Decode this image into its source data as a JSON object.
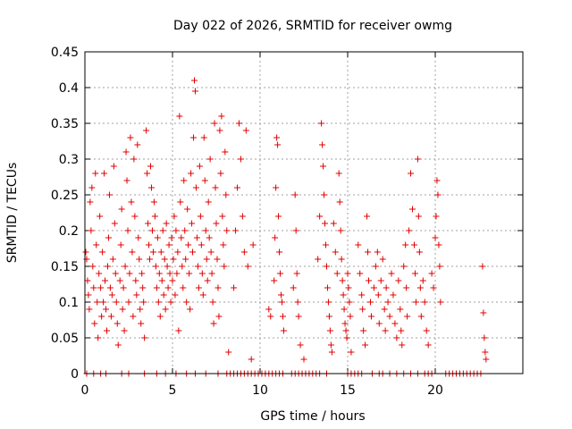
{
  "chart_data": {
    "type": "scatter",
    "title": "Day 022 of 2026, SRMTID for receiver owmg",
    "xlabel": "GPS time / hours",
    "ylabel": "SRMTID / TECUs",
    "xlim": [
      0,
      25
    ],
    "ylim": [
      0,
      0.45
    ],
    "xticks": [
      0,
      5,
      10,
      15,
      20
    ],
    "xtick_labels": [
      "0",
      "5",
      "10",
      "15",
      "20"
    ],
    "yticks": [
      0,
      0.05,
      0.1,
      0.15,
      0.2,
      0.25,
      0.3,
      0.35,
      0.4,
      0.45
    ],
    "ytick_labels": [
      "0",
      "0.05",
      "0.1",
      "0.15",
      "0.2",
      "0.25",
      "0.3",
      "0.35",
      "0.4",
      "0.45"
    ],
    "grid": true,
    "marker": "+",
    "marker_color": "#e00000",
    "series": [
      {
        "name": "SRMTID",
        "points": [
          [
            0.05,
            0.17
          ],
          [
            0.1,
            0.16
          ],
          [
            0.15,
            0.13
          ],
          [
            0.2,
            0.11
          ],
          [
            0.25,
            0.09
          ],
          [
            0.3,
            0.24
          ],
          [
            0.35,
            0.2
          ],
          [
            0.4,
            0.26
          ],
          [
            0.45,
            0.15
          ],
          [
            0.5,
            0.12
          ],
          [
            0.55,
            0.07
          ],
          [
            0.6,
            0.28
          ],
          [
            0.65,
            0.18
          ],
          [
            0.7,
            0.1
          ],
          [
            0.75,
            0.05
          ],
          [
            0.8,
            0.14
          ],
          [
            0.85,
            0.22
          ],
          [
            0.9,
            0.12
          ],
          [
            0.95,
            0.08
          ],
          [
            1.0,
            0.17
          ],
          [
            1.05,
            0.1
          ],
          [
            1.1,
            0.28
          ],
          [
            1.15,
            0.13
          ],
          [
            1.2,
            0.09
          ],
          [
            1.25,
            0.06
          ],
          [
            1.3,
            0.15
          ],
          [
            1.35,
            0.19
          ],
          [
            1.4,
            0.25
          ],
          [
            1.45,
            0.12
          ],
          [
            1.5,
            0.08
          ],
          [
            1.55,
            0.11
          ],
          [
            1.6,
            0.16
          ],
          [
            1.65,
            0.29
          ],
          [
            1.7,
            0.21
          ],
          [
            1.75,
            0.14
          ],
          [
            1.8,
            0.1
          ],
          [
            1.85,
            0.07
          ],
          [
            1.9,
            0.04
          ],
          [
            2.0,
            0.13
          ],
          [
            2.05,
            0.18
          ],
          [
            2.1,
            0.23
          ],
          [
            2.15,
            0.09
          ],
          [
            2.2,
            0.12
          ],
          [
            2.25,
            0.06
          ],
          [
            2.3,
            0.15
          ],
          [
            2.35,
            0.31
          ],
          [
            2.4,
            0.27
          ],
          [
            2.45,
            0.2
          ],
          [
            2.5,
            0.1
          ],
          [
            2.55,
            0.14
          ],
          [
            2.6,
            0.33
          ],
          [
            2.65,
            0.24
          ],
          [
            2.7,
            0.17
          ],
          [
            2.75,
            0.08
          ],
          [
            2.8,
            0.3
          ],
          [
            2.85,
            0.22
          ],
          [
            2.9,
            0.13
          ],
          [
            2.95,
            0.11
          ],
          [
            3.0,
            0.32
          ],
          [
            3.05,
            0.19
          ],
          [
            3.1,
            0.16
          ],
          [
            3.15,
            0.09
          ],
          [
            3.2,
            0.07
          ],
          [
            3.25,
            0.14
          ],
          [
            3.3,
            0.12
          ],
          [
            3.35,
            0.1
          ],
          [
            3.4,
            0.05
          ],
          [
            3.5,
            0.34
          ],
          [
            3.55,
            0.28
          ],
          [
            3.6,
            0.21
          ],
          [
            3.65,
            0.18
          ],
          [
            3.7,
            0.16
          ],
          [
            3.75,
            0.29
          ],
          [
            3.8,
            0.26
          ],
          [
            3.85,
            0.2
          ],
          [
            3.9,
            0.17
          ],
          [
            3.95,
            0.24
          ],
          [
            4.0,
            0.22
          ],
          [
            4.05,
            0.15
          ],
          [
            4.1,
            0.12
          ],
          [
            4.15,
            0.19
          ],
          [
            4.2,
            0.1
          ],
          [
            4.25,
            0.14
          ],
          [
            4.3,
            0.08
          ],
          [
            4.35,
            0.17
          ],
          [
            4.4,
            0.13
          ],
          [
            4.45,
            0.2
          ],
          [
            4.5,
            0.11
          ],
          [
            4.55,
            0.16
          ],
          [
            4.6,
            0.09
          ],
          [
            4.65,
            0.21
          ],
          [
            4.7,
            0.15
          ],
          [
            4.75,
            0.12
          ],
          [
            4.8,
            0.18
          ],
          [
            4.85,
            0.14
          ],
          [
            4.9,
            0.1
          ],
          [
            4.95,
            0.19
          ],
          [
            5.0,
            0.13
          ],
          [
            5.05,
            0.16
          ],
          [
            5.1,
            0.22
          ],
          [
            5.15,
            0.11
          ],
          [
            5.2,
            0.2
          ],
          [
            5.25,
            0.14
          ],
          [
            5.3,
            0.17
          ],
          [
            5.35,
            0.06
          ],
          [
            5.4,
            0.36
          ],
          [
            5.45,
            0.24
          ],
          [
            5.5,
            0.19
          ],
          [
            5.55,
            0.15
          ],
          [
            5.6,
            0.12
          ],
          [
            5.65,
            0.27
          ],
          [
            5.7,
            0.2
          ],
          [
            5.75,
            0.16
          ],
          [
            5.8,
            0.1
          ],
          [
            5.85,
            0.23
          ],
          [
            5.9,
            0.18
          ],
          [
            5.95,
            0.14
          ],
          [
            6.0,
            0.09
          ],
          [
            6.05,
            0.28
          ],
          [
            6.1,
            0.21
          ],
          [
            6.15,
            0.17
          ],
          [
            6.2,
            0.33
          ],
          [
            6.25,
            0.41
          ],
          [
            6.3,
            0.395
          ],
          [
            6.35,
            0.26
          ],
          [
            6.4,
            0.19
          ],
          [
            6.45,
            0.15
          ],
          [
            6.5,
            0.12
          ],
          [
            6.55,
            0.29
          ],
          [
            6.6,
            0.22
          ],
          [
            6.65,
            0.18
          ],
          [
            6.7,
            0.14
          ],
          [
            6.75,
            0.11
          ],
          [
            6.8,
            0.33
          ],
          [
            6.85,
            0.27
          ],
          [
            6.9,
            0.2
          ],
          [
            6.95,
            0.16
          ],
          [
            7.0,
            0.13
          ],
          [
            7.05,
            0.24
          ],
          [
            7.1,
            0.19
          ],
          [
            7.15,
            0.3
          ],
          [
            7.2,
            0.17
          ],
          [
            7.25,
            0.14
          ],
          [
            7.3,
            0.1
          ],
          [
            7.35,
            0.07
          ],
          [
            7.4,
            0.35
          ],
          [
            7.45,
            0.26
          ],
          [
            7.5,
            0.21
          ],
          [
            7.55,
            0.16
          ],
          [
            7.6,
            0.12
          ],
          [
            7.65,
            0.08
          ],
          [
            7.7,
            0.34
          ],
          [
            7.75,
            0.28
          ],
          [
            7.8,
            0.36
          ],
          [
            7.85,
            0.22
          ],
          [
            7.9,
            0.18
          ],
          [
            7.95,
            0.15
          ],
          [
            8.0,
            0.31
          ],
          [
            8.05,
            0.25
          ],
          [
            8.1,
            0.2
          ],
          [
            8.2,
            0.03
          ],
          [
            8.5,
            0.12
          ],
          [
            8.6,
            0.2
          ],
          [
            8.7,
            0.26
          ],
          [
            8.8,
            0.35
          ],
          [
            8.9,
            0.3
          ],
          [
            9.0,
            0.22
          ],
          [
            9.1,
            0.17
          ],
          [
            9.2,
            0.34
          ],
          [
            9.3,
            0.15
          ],
          [
            9.5,
            0.02
          ],
          [
            9.6,
            0.18
          ],
          [
            10.5,
            0.09
          ],
          [
            10.6,
            0.08
          ],
          [
            10.8,
            0.13
          ],
          [
            10.85,
            0.19
          ],
          [
            10.9,
            0.26
          ],
          [
            10.95,
            0.33
          ],
          [
            11.0,
            0.32
          ],
          [
            11.05,
            0.22
          ],
          [
            11.1,
            0.17
          ],
          [
            11.15,
            0.14
          ],
          [
            11.2,
            0.11
          ],
          [
            11.25,
            0.1
          ],
          [
            11.3,
            0.08
          ],
          [
            11.35,
            0.06
          ],
          [
            11.9,
            0.12
          ],
          [
            12.0,
            0.25
          ],
          [
            12.05,
            0.2
          ],
          [
            12.1,
            0.14
          ],
          [
            12.15,
            0.1
          ],
          [
            12.2,
            0.08
          ],
          [
            12.3,
            0.04
          ],
          [
            12.5,
            0.02
          ],
          [
            13.3,
            0.16
          ],
          [
            13.4,
            0.22
          ],
          [
            13.5,
            0.35
          ],
          [
            13.55,
            0.32
          ],
          [
            13.6,
            0.29
          ],
          [
            13.65,
            0.25
          ],
          [
            13.7,
            0.21
          ],
          [
            13.75,
            0.18
          ],
          [
            13.8,
            0.15
          ],
          [
            13.85,
            0.12
          ],
          [
            13.9,
            0.1
          ],
          [
            13.95,
            0.08
          ],
          [
            14.0,
            0.06
          ],
          [
            14.05,
            0.04
          ],
          [
            14.1,
            0.03
          ],
          [
            14.2,
            0.21
          ],
          [
            14.3,
            0.17
          ],
          [
            14.4,
            0.14
          ],
          [
            14.5,
            0.28
          ],
          [
            14.55,
            0.24
          ],
          [
            14.6,
            0.2
          ],
          [
            14.65,
            0.16
          ],
          [
            14.7,
            0.13
          ],
          [
            14.75,
            0.11
          ],
          [
            14.8,
            0.09
          ],
          [
            14.85,
            0.07
          ],
          [
            14.9,
            0.06
          ],
          [
            14.95,
            0.05
          ],
          [
            15.0,
            0.14
          ],
          [
            15.05,
            0.12
          ],
          [
            15.1,
            0.1
          ],
          [
            15.15,
            0.08
          ],
          [
            15.2,
            0.03
          ],
          [
            15.6,
            0.18
          ],
          [
            15.7,
            0.14
          ],
          [
            15.8,
            0.11
          ],
          [
            15.85,
            0.09
          ],
          [
            15.9,
            0.06
          ],
          [
            16.0,
            0.04
          ],
          [
            16.1,
            0.22
          ],
          [
            16.15,
            0.17
          ],
          [
            16.2,
            0.13
          ],
          [
            16.3,
            0.1
          ],
          [
            16.35,
            0.08
          ],
          [
            16.5,
            0.12
          ],
          [
            16.6,
            0.15
          ],
          [
            16.7,
            0.17
          ],
          [
            16.75,
            0.11
          ],
          [
            16.8,
            0.07
          ],
          [
            16.9,
            0.13
          ],
          [
            17.0,
            0.16
          ],
          [
            17.1,
            0.09
          ],
          [
            17.15,
            0.06
          ],
          [
            17.2,
            0.12
          ],
          [
            17.3,
            0.1
          ],
          [
            17.4,
            0.08
          ],
          [
            17.5,
            0.14
          ],
          [
            17.6,
            0.11
          ],
          [
            17.7,
            0.07
          ],
          [
            17.8,
            0.05
          ],
          [
            17.9,
            0.13
          ],
          [
            18.0,
            0.09
          ],
          [
            18.05,
            0.06
          ],
          [
            18.1,
            0.04
          ],
          [
            18.2,
            0.15
          ],
          [
            18.3,
            0.18
          ],
          [
            18.35,
            0.12
          ],
          [
            18.4,
            0.08
          ],
          [
            18.5,
            0.2
          ],
          [
            18.6,
            0.28
          ],
          [
            18.7,
            0.23
          ],
          [
            18.8,
            0.18
          ],
          [
            18.85,
            0.14
          ],
          [
            18.9,
            0.1
          ],
          [
            19.0,
            0.3
          ],
          [
            19.05,
            0.22
          ],
          [
            19.1,
            0.17
          ],
          [
            19.15,
            0.12
          ],
          [
            19.2,
            0.08
          ],
          [
            19.3,
            0.13
          ],
          [
            19.4,
            0.1
          ],
          [
            19.5,
            0.06
          ],
          [
            19.6,
            0.04
          ],
          [
            19.8,
            0.14
          ],
          [
            19.9,
            0.12
          ],
          [
            20.0,
            0.19
          ],
          [
            20.05,
            0.22
          ],
          [
            20.1,
            0.27
          ],
          [
            20.15,
            0.25
          ],
          [
            20.2,
            0.18
          ],
          [
            20.25,
            0.15
          ],
          [
            20.3,
            0.1
          ],
          [
            22.7,
            0.15
          ],
          [
            22.75,
            0.085
          ],
          [
            22.8,
            0.05
          ],
          [
            22.85,
            0.03
          ],
          [
            22.9,
            0.02
          ]
        ]
      }
    ],
    "zero_points_x": [
      0.1,
      0.5,
      0.9,
      1.2,
      2.1,
      2.5,
      3.4,
      4.1,
      4.6,
      5.2,
      5.8,
      6.3,
      6.9,
      7.6,
      8.1,
      8.3,
      8.5,
      8.7,
      8.9,
      9.1,
      9.3,
      9.5,
      9.7,
      9.9,
      10.1,
      10.3,
      10.5,
      10.7,
      10.9,
      11.1,
      11.3,
      11.8,
      12.0,
      12.2,
      12.4,
      12.6,
      12.8,
      13.0,
      13.2,
      13.4,
      13.8,
      15.0,
      15.2,
      15.4,
      15.6,
      15.8,
      16.4,
      16.8,
      17.0,
      17.4,
      17.8,
      18.2,
      18.6,
      19.0,
      19.4,
      19.6,
      19.8,
      20.6,
      20.8,
      21.0,
      21.2,
      21.4,
      21.6,
      21.8,
      22.0,
      22.2,
      22.4,
      22.6
    ]
  }
}
